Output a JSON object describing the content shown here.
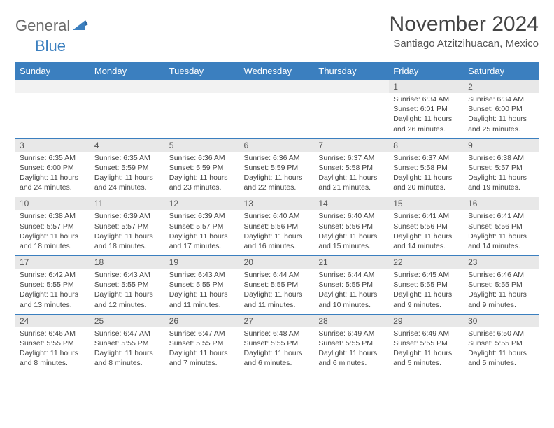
{
  "logo": {
    "general": "General",
    "blue": "Blue"
  },
  "title": "November 2024",
  "location": "Santiago Atzitzihuacan, Mexico",
  "colors": {
    "header_bg": "#3b7fbf",
    "header_fg": "#ffffff",
    "daynum_bg": "#e8e8e8",
    "border": "#3b7fbf",
    "text": "#444444"
  },
  "weekdays": [
    "Sunday",
    "Monday",
    "Tuesday",
    "Wednesday",
    "Thursday",
    "Friday",
    "Saturday"
  ],
  "weeks": [
    {
      "nums": [
        "",
        "",
        "",
        "",
        "",
        "1",
        "2"
      ],
      "cells": [
        null,
        null,
        null,
        null,
        null,
        {
          "sunrise": "Sunrise: 6:34 AM",
          "sunset": "Sunset: 6:01 PM",
          "daylight1": "Daylight: 11 hours",
          "daylight2": "and 26 minutes."
        },
        {
          "sunrise": "Sunrise: 6:34 AM",
          "sunset": "Sunset: 6:00 PM",
          "daylight1": "Daylight: 11 hours",
          "daylight2": "and 25 minutes."
        }
      ]
    },
    {
      "nums": [
        "3",
        "4",
        "5",
        "6",
        "7",
        "8",
        "9"
      ],
      "cells": [
        {
          "sunrise": "Sunrise: 6:35 AM",
          "sunset": "Sunset: 6:00 PM",
          "daylight1": "Daylight: 11 hours",
          "daylight2": "and 24 minutes."
        },
        {
          "sunrise": "Sunrise: 6:35 AM",
          "sunset": "Sunset: 5:59 PM",
          "daylight1": "Daylight: 11 hours",
          "daylight2": "and 24 minutes."
        },
        {
          "sunrise": "Sunrise: 6:36 AM",
          "sunset": "Sunset: 5:59 PM",
          "daylight1": "Daylight: 11 hours",
          "daylight2": "and 23 minutes."
        },
        {
          "sunrise": "Sunrise: 6:36 AM",
          "sunset": "Sunset: 5:59 PM",
          "daylight1": "Daylight: 11 hours",
          "daylight2": "and 22 minutes."
        },
        {
          "sunrise": "Sunrise: 6:37 AM",
          "sunset": "Sunset: 5:58 PM",
          "daylight1": "Daylight: 11 hours",
          "daylight2": "and 21 minutes."
        },
        {
          "sunrise": "Sunrise: 6:37 AM",
          "sunset": "Sunset: 5:58 PM",
          "daylight1": "Daylight: 11 hours",
          "daylight2": "and 20 minutes."
        },
        {
          "sunrise": "Sunrise: 6:38 AM",
          "sunset": "Sunset: 5:57 PM",
          "daylight1": "Daylight: 11 hours",
          "daylight2": "and 19 minutes."
        }
      ]
    },
    {
      "nums": [
        "10",
        "11",
        "12",
        "13",
        "14",
        "15",
        "16"
      ],
      "cells": [
        {
          "sunrise": "Sunrise: 6:38 AM",
          "sunset": "Sunset: 5:57 PM",
          "daylight1": "Daylight: 11 hours",
          "daylight2": "and 18 minutes."
        },
        {
          "sunrise": "Sunrise: 6:39 AM",
          "sunset": "Sunset: 5:57 PM",
          "daylight1": "Daylight: 11 hours",
          "daylight2": "and 18 minutes."
        },
        {
          "sunrise": "Sunrise: 6:39 AM",
          "sunset": "Sunset: 5:57 PM",
          "daylight1": "Daylight: 11 hours",
          "daylight2": "and 17 minutes."
        },
        {
          "sunrise": "Sunrise: 6:40 AM",
          "sunset": "Sunset: 5:56 PM",
          "daylight1": "Daylight: 11 hours",
          "daylight2": "and 16 minutes."
        },
        {
          "sunrise": "Sunrise: 6:40 AM",
          "sunset": "Sunset: 5:56 PM",
          "daylight1": "Daylight: 11 hours",
          "daylight2": "and 15 minutes."
        },
        {
          "sunrise": "Sunrise: 6:41 AM",
          "sunset": "Sunset: 5:56 PM",
          "daylight1": "Daylight: 11 hours",
          "daylight2": "and 14 minutes."
        },
        {
          "sunrise": "Sunrise: 6:41 AM",
          "sunset": "Sunset: 5:56 PM",
          "daylight1": "Daylight: 11 hours",
          "daylight2": "and 14 minutes."
        }
      ]
    },
    {
      "nums": [
        "17",
        "18",
        "19",
        "20",
        "21",
        "22",
        "23"
      ],
      "cells": [
        {
          "sunrise": "Sunrise: 6:42 AM",
          "sunset": "Sunset: 5:55 PM",
          "daylight1": "Daylight: 11 hours",
          "daylight2": "and 13 minutes."
        },
        {
          "sunrise": "Sunrise: 6:43 AM",
          "sunset": "Sunset: 5:55 PM",
          "daylight1": "Daylight: 11 hours",
          "daylight2": "and 12 minutes."
        },
        {
          "sunrise": "Sunrise: 6:43 AM",
          "sunset": "Sunset: 5:55 PM",
          "daylight1": "Daylight: 11 hours",
          "daylight2": "and 11 minutes."
        },
        {
          "sunrise": "Sunrise: 6:44 AM",
          "sunset": "Sunset: 5:55 PM",
          "daylight1": "Daylight: 11 hours",
          "daylight2": "and 11 minutes."
        },
        {
          "sunrise": "Sunrise: 6:44 AM",
          "sunset": "Sunset: 5:55 PM",
          "daylight1": "Daylight: 11 hours",
          "daylight2": "and 10 minutes."
        },
        {
          "sunrise": "Sunrise: 6:45 AM",
          "sunset": "Sunset: 5:55 PM",
          "daylight1": "Daylight: 11 hours",
          "daylight2": "and 9 minutes."
        },
        {
          "sunrise": "Sunrise: 6:46 AM",
          "sunset": "Sunset: 5:55 PM",
          "daylight1": "Daylight: 11 hours",
          "daylight2": "and 9 minutes."
        }
      ]
    },
    {
      "nums": [
        "24",
        "25",
        "26",
        "27",
        "28",
        "29",
        "30"
      ],
      "cells": [
        {
          "sunrise": "Sunrise: 6:46 AM",
          "sunset": "Sunset: 5:55 PM",
          "daylight1": "Daylight: 11 hours",
          "daylight2": "and 8 minutes."
        },
        {
          "sunrise": "Sunrise: 6:47 AM",
          "sunset": "Sunset: 5:55 PM",
          "daylight1": "Daylight: 11 hours",
          "daylight2": "and 8 minutes."
        },
        {
          "sunrise": "Sunrise: 6:47 AM",
          "sunset": "Sunset: 5:55 PM",
          "daylight1": "Daylight: 11 hours",
          "daylight2": "and 7 minutes."
        },
        {
          "sunrise": "Sunrise: 6:48 AM",
          "sunset": "Sunset: 5:55 PM",
          "daylight1": "Daylight: 11 hours",
          "daylight2": "and 6 minutes."
        },
        {
          "sunrise": "Sunrise: 6:49 AM",
          "sunset": "Sunset: 5:55 PM",
          "daylight1": "Daylight: 11 hours",
          "daylight2": "and 6 minutes."
        },
        {
          "sunrise": "Sunrise: 6:49 AM",
          "sunset": "Sunset: 5:55 PM",
          "daylight1": "Daylight: 11 hours",
          "daylight2": "and 5 minutes."
        },
        {
          "sunrise": "Sunrise: 6:50 AM",
          "sunset": "Sunset: 5:55 PM",
          "daylight1": "Daylight: 11 hours",
          "daylight2": "and 5 minutes."
        }
      ]
    }
  ]
}
